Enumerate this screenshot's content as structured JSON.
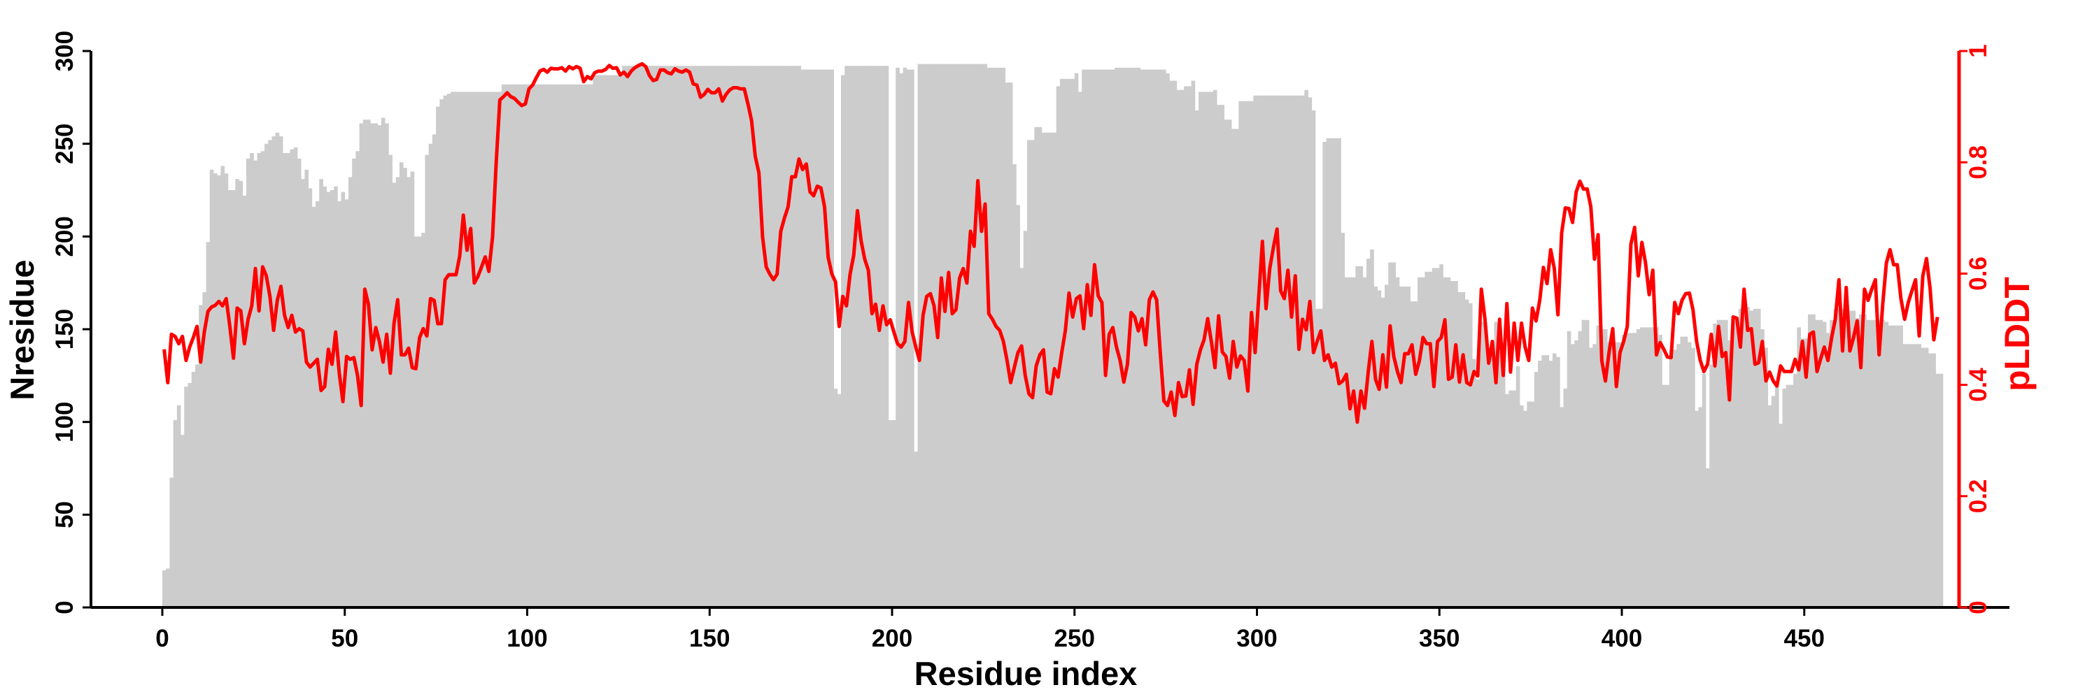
{
  "chart_data": {
    "type": "bar+line",
    "title": "",
    "xlabel": "Residue index",
    "ylabel": "Nresidue",
    "y2label": "pLDDT",
    "xlim": [
      -20,
      507
    ],
    "ylim": [
      0,
      300
    ],
    "y2lim": [
      0,
      1
    ],
    "x_ticks": [
      "0",
      "50",
      "100",
      "150",
      "200",
      "250",
      "300",
      "350",
      "400",
      "450"
    ],
    "y_ticks": [
      "0",
      "50",
      "100",
      "150",
      "200",
      "250",
      "300"
    ],
    "y2_ticks": [
      "0",
      "0.2",
      "0.4",
      "0.6",
      "0.8",
      "1"
    ],
    "grid": false,
    "colors": {
      "bars": "#cccccc",
      "line": "#ff0000",
      "axis": "#000000",
      "axis2": "#ff0000"
    },
    "x_start": 0,
    "series": [
      {
        "name": "Nresidue",
        "type": "bar",
        "axis": "left",
        "values": [
          20,
          21,
          70,
          101,
          109,
          93,
          119,
          121,
          127,
          131,
          163,
          170,
          197,
          236,
          234,
          233,
          238,
          234,
          225,
          225,
          231,
          230,
          222,
          242,
          245,
          241,
          245,
          246,
          250,
          252,
          254,
          256,
          254,
          245,
          245,
          247,
          248,
          242,
          231,
          236,
          226,
          216,
          219,
          231,
          227,
          224,
          225,
          227,
          219,
          224,
          220,
          232,
          242,
          246,
          261,
          263,
          263,
          261,
          261,
          260,
          264,
          261,
          244,
          229,
          232,
          240,
          237,
          232,
          235,
          200,
          200,
          202,
          244,
          250,
          255,
          270,
          274,
          276,
          277,
          278,
          278,
          278,
          278,
          278,
          278,
          278,
          278,
          278,
          278,
          278,
          278,
          278,
          278,
          282,
          282,
          282,
          282,
          282,
          282,
          282,
          282,
          282,
          282,
          282,
          282,
          282,
          282,
          282,
          282,
          282,
          282,
          282,
          282,
          282,
          282,
          282,
          282,
          282,
          287,
          287,
          287,
          287,
          287,
          287,
          287,
          287,
          292,
          292,
          292,
          292,
          292,
          292,
          292,
          292,
          292,
          292,
          292,
          292,
          292,
          292,
          292,
          292,
          292,
          292,
          292,
          292,
          292,
          292,
          292,
          292,
          292,
          292,
          292,
          292,
          292,
          292,
          292,
          292,
          292,
          292,
          292,
          292,
          292,
          292,
          292,
          292,
          292,
          292,
          292,
          292,
          292,
          292,
          292,
          292,
          292,
          290,
          290,
          290,
          290,
          290,
          290,
          290,
          290,
          290,
          118,
          115,
          287,
          292,
          292,
          292,
          292,
          292,
          292,
          292,
          292,
          292,
          292,
          292,
          292,
          101,
          101,
          291,
          288,
          291,
          290,
          290,
          84,
          293,
          293,
          293,
          293,
          293,
          293,
          293,
          293,
          293,
          293,
          293,
          293,
          293,
          293,
          293,
          293,
          293,
          293,
          293,
          291,
          291,
          291,
          291,
          291,
          283,
          283,
          239,
          217,
          183,
          203,
          252,
          252,
          259,
          259,
          256,
          256,
          256,
          256,
          281,
          285,
          285,
          285,
          285,
          288,
          278,
          290,
          290,
          290,
          290,
          290,
          290,
          290,
          290,
          290,
          291,
          291,
          291,
          291,
          291,
          291,
          291,
          290,
          290,
          290,
          290,
          290,
          290,
          290,
          288,
          284,
          284,
          279,
          279,
          281,
          281,
          284,
          268,
          278,
          278,
          278,
          278,
          279,
          271,
          271,
          263,
          263,
          258,
          258,
          273,
          273,
          273,
          273,
          276,
          276,
          276,
          276,
          276,
          276,
          276,
          276,
          276,
          276,
          276,
          276,
          276,
          276,
          279,
          275,
          268,
          161,
          161,
          251,
          253,
          253,
          253,
          253,
          202,
          178,
          178,
          178,
          184,
          184,
          178,
          188,
          193,
          173,
          171,
          167,
          174,
          186,
          186,
          178,
          173,
          173,
          173,
          165,
          165,
          178,
          178,
          181,
          181,
          183,
          183,
          185,
          178,
          178,
          176,
          176,
          170,
          170,
          166,
          164,
          134,
          123,
          154,
          154,
          140,
          140,
          154,
          143,
          143,
          115,
          117,
          117,
          130,
          109,
          106,
          111,
          111,
          127,
          133,
          136,
          136,
          133,
          137,
          135,
          108,
          118,
          149,
          142,
          144,
          149,
          155,
          155,
          140,
          142,
          152,
          150,
          150,
          143,
          146,
          143,
          143,
          147,
          148,
          148,
          148,
          150,
          151,
          151,
          151,
          151,
          151,
          147,
          120,
          120,
          139,
          139,
          142,
          146,
          146,
          143,
          140,
          106,
          108,
          126,
          75,
          131,
          153,
          155,
          155,
          155,
          144,
          156,
          156,
          161,
          162,
          162,
          160,
          161,
          161,
          150,
          140,
          109,
          114,
          120,
          99,
          118,
          120,
          120,
          126,
          151,
          145,
          145,
          158,
          158,
          155,
          155,
          154,
          148,
          155,
          161,
          161,
          161,
          160,
          160,
          160,
          156,
          158,
          158,
          155,
          155,
          155,
          155,
          155,
          154,
          152,
          152,
          152,
          152,
          142,
          142,
          142,
          142,
          142,
          140,
          140,
          137,
          137,
          126,
          126
        ]
      },
      {
        "name": "pLDDT",
        "type": "line",
        "axis": "right",
        "values": [
          0.464,
          0.404,
          0.491,
          0.487,
          0.474,
          0.487,
          0.444,
          0.468,
          0.485,
          0.505,
          0.441,
          0.495,
          0.532,
          0.54,
          0.543,
          0.55,
          0.542,
          0.555,
          0.505,
          0.448,
          0.538,
          0.533,
          0.474,
          0.518,
          0.542,
          0.609,
          0.533,
          0.612,
          0.596,
          0.559,
          0.498,
          0.552,
          0.577,
          0.525,
          0.503,
          0.525,
          0.495,
          0.501,
          0.497,
          0.441,
          0.432,
          0.439,
          0.446,
          0.39,
          0.397,
          0.464,
          0.437,
          0.495,
          0.421,
          0.37,
          0.451,
          0.446,
          0.449,
          0.417,
          0.363,
          0.572,
          0.545,
          0.463,
          0.503,
          0.478,
          0.441,
          0.491,
          0.421,
          0.511,
          0.553,
          0.454,
          0.454,
          0.466,
          0.431,
          0.429,
          0.485,
          0.501,
          0.488,
          0.555,
          0.552,
          0.51,
          0.51,
          0.589,
          0.598,
          0.598,
          0.598,
          0.631,
          0.705,
          0.642,
          0.681,
          0.583,
          0.595,
          0.612,
          0.63,
          0.604,
          0.666,
          0.8,
          0.912,
          0.918,
          0.925,
          0.918,
          0.915,
          0.908,
          0.902,
          0.905,
          0.932,
          0.939,
          0.952,
          0.964,
          0.967,
          0.962,
          0.969,
          0.968,
          0.968,
          0.97,
          0.964,
          0.972,
          0.968,
          0.972,
          0.969,
          0.945,
          0.954,
          0.95,
          0.961,
          0.964,
          0.964,
          0.967,
          0.974,
          0.969,
          0.97,
          0.957,
          0.962,
          0.954,
          0.964,
          0.97,
          0.974,
          0.977,
          0.972,
          0.956,
          0.947,
          0.949,
          0.966,
          0.966,
          0.961,
          0.959,
          0.968,
          0.964,
          0.962,
          0.966,
          0.962,
          0.941,
          0.939,
          0.917,
          0.922,
          0.931,
          0.925,
          0.925,
          0.932,
          0.91,
          0.922,
          0.93,
          0.934,
          0.934,
          0.932,
          0.932,
          0.905,
          0.875,
          0.811,
          0.781,
          0.666,
          0.612,
          0.599,
          0.589,
          0.599,
          0.676,
          0.7,
          0.72,
          0.774,
          0.774,
          0.806,
          0.787,
          0.797,
          0.747,
          0.74,
          0.757,
          0.754,
          0.72,
          0.629,
          0.599,
          0.585,
          0.505,
          0.559,
          0.542,
          0.599,
          0.633,
          0.713,
          0.659,
          0.626,
          0.606,
          0.528,
          0.545,
          0.498,
          0.542,
          0.508,
          0.517,
          0.495,
          0.474,
          0.468,
          0.478,
          0.548,
          0.495,
          0.468,
          0.444,
          0.525,
          0.559,
          0.564,
          0.542,
          0.485,
          0.592,
          0.532,
          0.602,
          0.528,
          0.535,
          0.592,
          0.609,
          0.583,
          0.676,
          0.649,
          0.767,
          0.676,
          0.725,
          0.528,
          0.518,
          0.505,
          0.498,
          0.478,
          0.444,
          0.404,
          0.431,
          0.458,
          0.47,
          0.417,
          0.384,
          0.377,
          0.434,
          0.454,
          0.463,
          0.387,
          0.384,
          0.429,
          0.414,
          0.458,
          0.498,
          0.565,
          0.522,
          0.555,
          0.56,
          0.501,
          0.58,
          0.525,
          0.616,
          0.56,
          0.548,
          0.417,
          0.491,
          0.503,
          0.468,
          0.444,
          0.405,
          0.437,
          0.53,
          0.522,
          0.497,
          0.519,
          0.472,
          0.553,
          0.567,
          0.553,
          0.458,
          0.371,
          0.363,
          0.387,
          0.345,
          0.404,
          0.379,
          0.38,
          0.427,
          0.365,
          0.437,
          0.463,
          0.481,
          0.519,
          0.478,
          0.431,
          0.524,
          0.459,
          0.451,
          0.412,
          0.478,
          0.432,
          0.452,
          0.444,
          0.389,
          0.53,
          0.458,
          0.559,
          0.658,
          0.537,
          0.609,
          0.647,
          0.68,
          0.569,
          0.555,
          0.606,
          0.522,
          0.596,
          0.464,
          0.518,
          0.499,
          0.55,
          0.458,
          0.478,
          0.497,
          0.444,
          0.454,
          0.432,
          0.439,
          0.402,
          0.407,
          0.419,
          0.357,
          0.389,
          0.333,
          0.389,
          0.358,
          0.424,
          0.478,
          0.41,
          0.392,
          0.454,
          0.396,
          0.506,
          0.451,
          0.424,
          0.404,
          0.456,
          0.456,
          0.472,
          0.419,
          0.443,
          0.485,
          0.474,
          0.474,
          0.397,
          0.478,
          0.485,
          0.517,
          0.41,
          0.414,
          0.472,
          0.405,
          0.454,
          0.404,
          0.4,
          0.424,
          0.416,
          0.572,
          0.518,
          0.439,
          0.478,
          0.404,
          0.518,
          0.417,
          0.546,
          0.423,
          0.511,
          0.444,
          0.511,
          0.468,
          0.444,
          0.538,
          0.515,
          0.552,
          0.611,
          0.582,
          0.643,
          0.609,
          0.526,
          0.673,
          0.718,
          0.717,
          0.692,
          0.747,
          0.766,
          0.752,
          0.752,
          0.72,
          0.626,
          0.67,
          0.444,
          0.407,
          0.458,
          0.501,
          0.397,
          0.458,
          0.478,
          0.505,
          0.653,
          0.683,
          0.596,
          0.656,
          0.619,
          0.562,
          0.606,
          0.454,
          0.476,
          0.464,
          0.45,
          0.449,
          0.548,
          0.528,
          0.552,
          0.564,
          0.565,
          0.535,
          0.478,
          0.444,
          0.424,
          0.437,
          0.491,
          0.434,
          0.505,
          0.451,
          0.458,
          0.373,
          0.522,
          0.52,
          0.468,
          0.572,
          0.498,
          0.501,
          0.437,
          0.44,
          0.478,
          0.407,
          0.423,
          0.407,
          0.398,
          0.434,
          0.424,
          0.424,
          0.424,
          0.446,
          0.427,
          0.478,
          0.414,
          0.491,
          0.495,
          0.424,
          0.447,
          0.468,
          0.444,
          0.485,
          0.518,
          0.589,
          0.461,
          0.575,
          0.461,
          0.485,
          0.515,
          0.431,
          0.572,
          0.552,
          0.572,
          0.589,
          0.454,
          0.545,
          0.619,
          0.643,
          0.616,
          0.616,
          0.555,
          0.518,
          0.548,
          0.569,
          0.589,
          0.488,
          0.596,
          0.627,
          0.572,
          0.481,
          0.522
        ]
      }
    ]
  }
}
